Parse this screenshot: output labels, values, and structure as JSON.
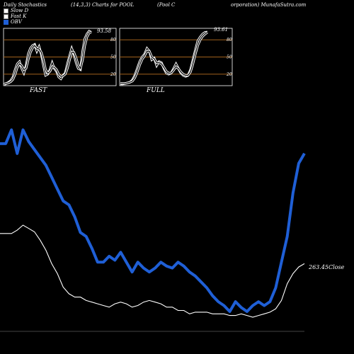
{
  "header": {
    "left": "Daily Stochastics",
    "middle": "(14,3,3) Charts for POOL",
    "right_a": "(Pool C",
    "right_b": "orporation) MunafaSutra.com"
  },
  "legend": [
    {
      "label": "Slow D",
      "color": "#ffffff"
    },
    {
      "label": "Fast K",
      "color": "#ffffff"
    },
    {
      "label": "OBV",
      "color": "#1f5fd6"
    }
  ],
  "colors": {
    "background": "#000000",
    "grid": "#a0601c",
    "stoch": "#ffffff",
    "obv": "#1f5fd6",
    "close": "#ffffff"
  },
  "chart_data": [
    {
      "type": "line",
      "caption": "FAST",
      "ylim": [
        0,
        100
      ],
      "yticks": [
        20,
        50,
        80
      ],
      "last_value_label": "93.58",
      "series": [
        {
          "name": "Fast K",
          "values": [
            2,
            4,
            6,
            9,
            15,
            28,
            38,
            42,
            30,
            22,
            35,
            55,
            65,
            70,
            72,
            60,
            68,
            55,
            35,
            18,
            20,
            28,
            40,
            30,
            25,
            15,
            12,
            18,
            22,
            38,
            52,
            65,
            55,
            40,
            30,
            28,
            60,
            82,
            90,
            95,
            93
          ]
        },
        {
          "name": "Slow D",
          "values": [
            3,
            4,
            5,
            7,
            11,
            20,
            32,
            38,
            35,
            28,
            30,
            45,
            58,
            66,
            70,
            65,
            64,
            58,
            45,
            28,
            22,
            25,
            33,
            32,
            28,
            20,
            16,
            17,
            20,
            30,
            45,
            58,
            58,
            48,
            36,
            30,
            45,
            70,
            85,
            92,
            93.58
          ]
        }
      ]
    },
    {
      "type": "line",
      "caption": "FULL",
      "ylim": [
        0,
        100
      ],
      "yticks": [
        20,
        50,
        80
      ],
      "last_value_label": "93.61",
      "series": [
        {
          "name": "Fast K",
          "values": [
            3,
            3,
            4,
            5,
            6,
            10,
            18,
            30,
            42,
            50,
            55,
            65,
            60,
            45,
            48,
            35,
            42,
            40,
            30,
            22,
            20,
            22,
            30,
            38,
            30,
            22,
            18,
            16,
            18,
            28,
            45,
            62,
            78,
            85,
            90,
            93,
            93.61
          ]
        },
        {
          "name": "Slow D",
          "values": [
            4,
            4,
            4,
            5,
            6,
            8,
            14,
            24,
            36,
            46,
            52,
            60,
            60,
            50,
            47,
            40,
            40,
            38,
            32,
            25,
            22,
            22,
            27,
            33,
            30,
            24,
            20,
            18,
            18,
            24,
            38,
            55,
            70,
            80,
            86,
            90,
            93
          ]
        }
      ]
    },
    {
      "type": "line",
      "last_close_label": "263.45Close",
      "series": [
        {
          "name": "OBV",
          "values": [
            85,
            85,
            92,
            80,
            92,
            86,
            82,
            78,
            74,
            68,
            62,
            56,
            54,
            48,
            40,
            38,
            32,
            25,
            25,
            28,
            26,
            30,
            25,
            20,
            25,
            22,
            20,
            22,
            25,
            23,
            22,
            25,
            23,
            20,
            18,
            15,
            12,
            8,
            5,
            3,
            0,
            5,
            2,
            0,
            3,
            5,
            3,
            5,
            12,
            25,
            38,
            60,
            75,
            80
          ]
        },
        {
          "name": "Close",
          "values": [
            50,
            50,
            50,
            52,
            55,
            53,
            51,
            46,
            40,
            32,
            26,
            18,
            14,
            12,
            12,
            10,
            9,
            8,
            7,
            6,
            8,
            9,
            8,
            6,
            7,
            9,
            10,
            9,
            8,
            6,
            6,
            4,
            4,
            2,
            3,
            3,
            3,
            2,
            2,
            2,
            1,
            1,
            2,
            1,
            0,
            1,
            2,
            3,
            5,
            10,
            20,
            26,
            30,
            32
          ]
        }
      ]
    }
  ]
}
